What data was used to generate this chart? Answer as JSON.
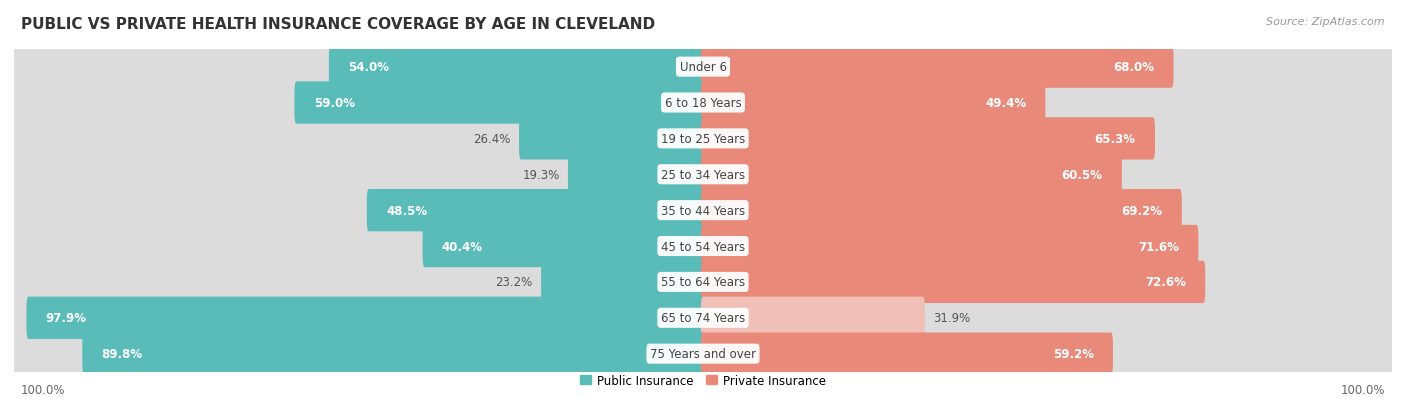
{
  "title": "PUBLIC VS PRIVATE HEALTH INSURANCE COVERAGE BY AGE IN CLEVELAND",
  "source": "Source: ZipAtlas.com",
  "categories": [
    "Under 6",
    "6 to 18 Years",
    "19 to 25 Years",
    "25 to 34 Years",
    "35 to 44 Years",
    "45 to 54 Years",
    "55 to 64 Years",
    "65 to 74 Years",
    "75 Years and over"
  ],
  "public_values": [
    54.0,
    59.0,
    26.4,
    19.3,
    48.5,
    40.4,
    23.2,
    97.9,
    89.8
  ],
  "private_values": [
    68.0,
    49.4,
    65.3,
    60.5,
    69.2,
    71.6,
    72.6,
    31.9,
    59.2
  ],
  "public_color": "#5abcb9",
  "private_color": "#e8897a",
  "private_color_light": "#f0bfb8",
  "row_bg_color_odd": "#f0f0f0",
  "row_bg_color_even": "#e4e4e4",
  "bar_bg_color": "#dcdcdc",
  "max_value": 100.0,
  "title_fontsize": 11,
  "label_fontsize": 8.5,
  "value_fontsize": 8.5,
  "legend_fontsize": 8.5,
  "source_fontsize": 8,
  "background_color": "#ffffff",
  "private_light_rows": [
    7
  ]
}
